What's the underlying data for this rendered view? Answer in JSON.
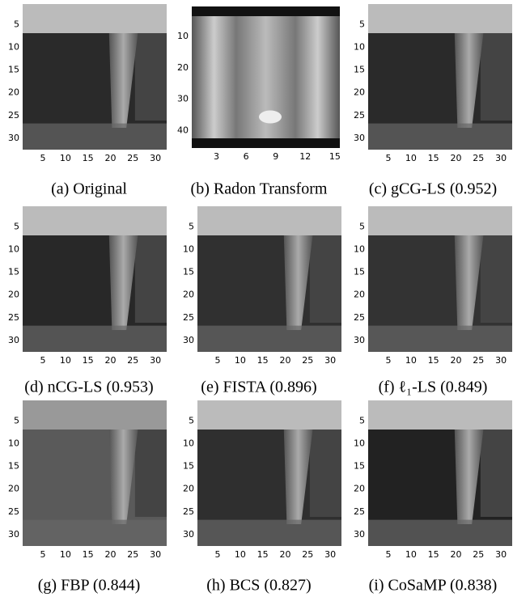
{
  "panels": [
    {
      "caption": "(a) Original",
      "xticks": [
        5,
        10,
        15,
        20,
        25,
        30
      ],
      "yticks": [
        5,
        10,
        15,
        20,
        25,
        30
      ]
    },
    {
      "caption": "(b) Radon Transform",
      "xticks": [
        3,
        6,
        9,
        12,
        15
      ],
      "yticks": [
        10,
        20,
        30,
        40
      ]
    },
    {
      "caption": "(c) gCG-LS (0.952)",
      "xticks": [
        5,
        10,
        15,
        20,
        25,
        30
      ],
      "yticks": [
        5,
        10,
        15,
        20,
        25,
        30
      ]
    },
    {
      "caption": "(d) nCG-LS (0.953)",
      "xticks": [
        5,
        10,
        15,
        20,
        25,
        30
      ],
      "yticks": [
        5,
        10,
        15,
        20,
        25,
        30
      ]
    },
    {
      "caption": "(e) FISTA (0.896)",
      "xticks": [
        5,
        10,
        15,
        20,
        25,
        30
      ],
      "yticks": [
        5,
        10,
        15,
        20,
        25,
        30
      ]
    },
    {
      "caption": "(f) ℓ₁-LS (0.849)",
      "xticks": [
        5,
        10,
        15,
        20,
        25,
        30
      ],
      "yticks": [
        5,
        10,
        15,
        20,
        25,
        30
      ]
    },
    {
      "caption": "(g) FBP (0.844)",
      "xticks": [
        5,
        10,
        15,
        20,
        25,
        30
      ],
      "yticks": [
        5,
        10,
        15,
        20,
        25,
        30
      ]
    },
    {
      "caption": "(h) BCS (0.827)",
      "xticks": [
        5,
        10,
        15,
        20,
        25,
        30
      ],
      "yticks": [
        5,
        10,
        15,
        20,
        25,
        30
      ]
    },
    {
      "caption": "(i) CoSaMP (0.838)",
      "xticks": [
        5,
        10,
        15,
        20,
        25,
        30
      ],
      "yticks": [
        5,
        10,
        15,
        20,
        25,
        30
      ]
    }
  ]
}
